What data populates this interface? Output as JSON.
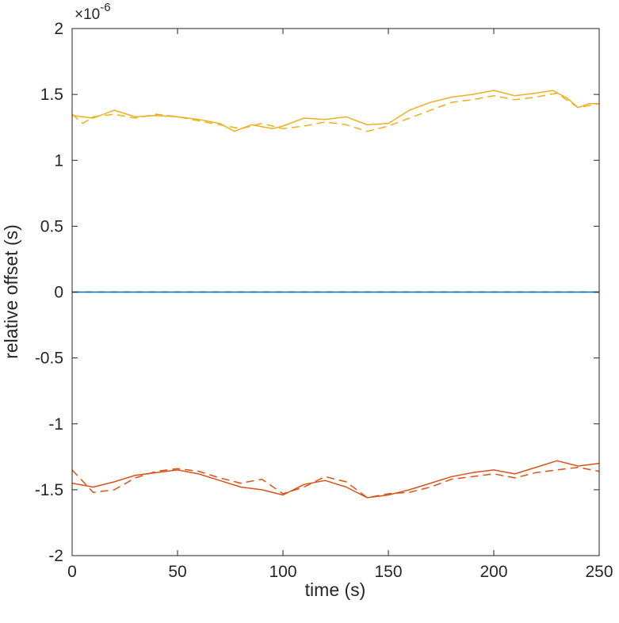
{
  "chart_data": {
    "type": "line",
    "xlabel": "time (s)",
    "ylabel": "relative offset (s)",
    "y_exponent": "×10",
    "y_exponent_power": "-6",
    "xlim": [
      0,
      250
    ],
    "ylim": [
      -2,
      2
    ],
    "x_ticks": [
      0,
      50,
      100,
      150,
      200,
      250
    ],
    "x_tick_labels": [
      "0",
      "50",
      "100",
      "150",
      "200",
      "250"
    ],
    "y_ticks": [
      2,
      1.5,
      1,
      0.5,
      0,
      -0.5,
      -1,
      -1.5,
      -2
    ],
    "y_tick_labels": [
      "2",
      "1.5",
      "1",
      "0.5",
      "0",
      "-0.5",
      "-1",
      "-1.5",
      "-2"
    ],
    "grid": false,
    "box": true,
    "series": [
      {
        "color": "#0072BD",
        "style": "solid",
        "x": [
          0,
          250
        ],
        "values": [
          0,
          0
        ]
      },
      {
        "color": "#0072BD",
        "style": "dashed",
        "x": [
          0,
          250
        ],
        "values": [
          0,
          0
        ]
      },
      {
        "color": "#EDB120",
        "style": "solid",
        "x": [
          0,
          10,
          20,
          30,
          40,
          50,
          60,
          70,
          77,
          85,
          95,
          100,
          110,
          120,
          130,
          140,
          150,
          160,
          170,
          180,
          190,
          200,
          210,
          220,
          228,
          235,
          240,
          245,
          250
        ],
        "values": [
          1.34,
          1.32,
          1.38,
          1.33,
          1.34,
          1.33,
          1.31,
          1.28,
          1.22,
          1.27,
          1.24,
          1.26,
          1.32,
          1.31,
          1.33,
          1.27,
          1.28,
          1.38,
          1.44,
          1.48,
          1.5,
          1.53,
          1.49,
          1.51,
          1.53,
          1.47,
          1.4,
          1.43,
          1.43
        ]
      },
      {
        "color": "#EDB120",
        "style": "dashed",
        "x": [
          0,
          5,
          10,
          20,
          30,
          40,
          50,
          60,
          70,
          80,
          90,
          100,
          110,
          120,
          130,
          140,
          150,
          160,
          170,
          180,
          190,
          200,
          210,
          220,
          230,
          240,
          250
        ],
        "values": [
          1.35,
          1.28,
          1.33,
          1.35,
          1.32,
          1.35,
          1.33,
          1.3,
          1.27,
          1.24,
          1.28,
          1.24,
          1.26,
          1.29,
          1.27,
          1.22,
          1.26,
          1.32,
          1.38,
          1.44,
          1.46,
          1.49,
          1.46,
          1.48,
          1.51,
          1.4,
          1.43
        ]
      },
      {
        "color": "#D95319",
        "style": "solid",
        "x": [
          0,
          10,
          20,
          30,
          40,
          50,
          60,
          70,
          80,
          90,
          100,
          110,
          120,
          130,
          140,
          150,
          160,
          170,
          180,
          190,
          200,
          210,
          220,
          230,
          240,
          250
        ],
        "values": [
          -1.45,
          -1.48,
          -1.44,
          -1.39,
          -1.37,
          -1.35,
          -1.38,
          -1.43,
          -1.48,
          -1.5,
          -1.54,
          -1.46,
          -1.43,
          -1.48,
          -1.56,
          -1.54,
          -1.5,
          -1.45,
          -1.4,
          -1.37,
          -1.35,
          -1.38,
          -1.33,
          -1.28,
          -1.32,
          -1.3
        ]
      },
      {
        "color": "#D95319",
        "style": "dashed",
        "x": [
          0,
          10,
          20,
          30,
          40,
          50,
          60,
          70,
          80,
          90,
          100,
          110,
          120,
          130,
          140,
          150,
          160,
          170,
          180,
          190,
          200,
          210,
          220,
          230,
          240,
          250
        ],
        "values": [
          -1.35,
          -1.52,
          -1.5,
          -1.41,
          -1.36,
          -1.34,
          -1.36,
          -1.41,
          -1.45,
          -1.42,
          -1.53,
          -1.48,
          -1.4,
          -1.44,
          -1.56,
          -1.53,
          -1.52,
          -1.48,
          -1.42,
          -1.4,
          -1.38,
          -1.41,
          -1.37,
          -1.35,
          -1.33,
          -1.36
        ]
      }
    ]
  }
}
